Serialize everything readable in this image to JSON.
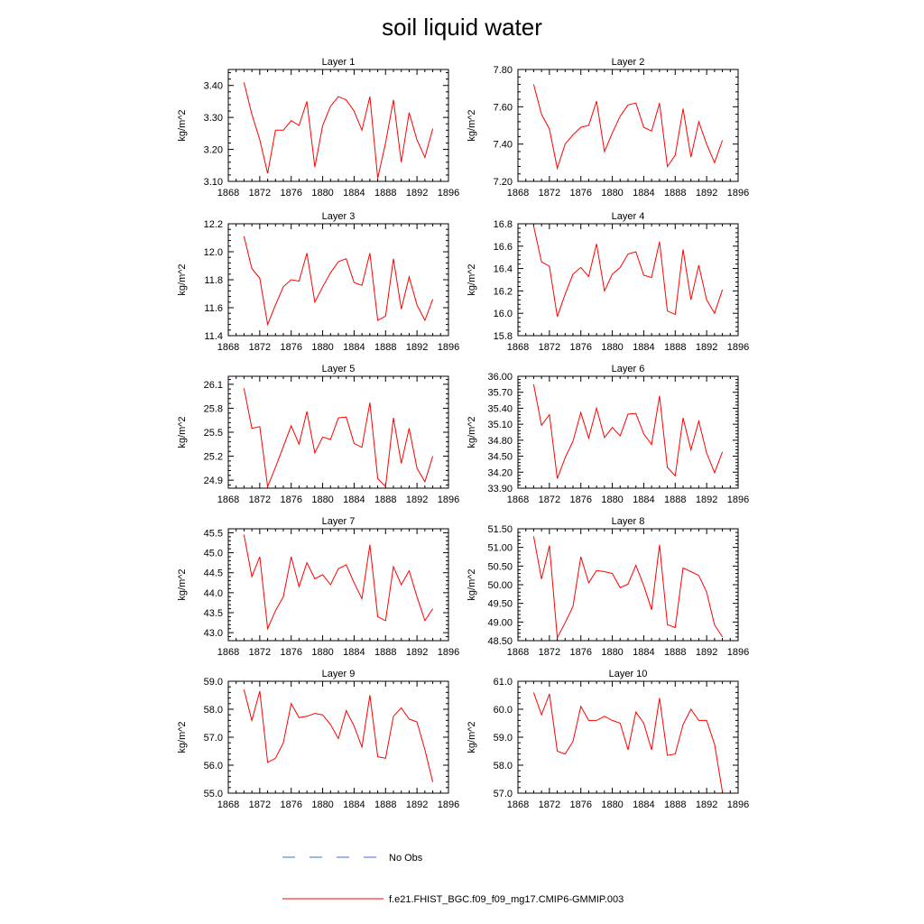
{
  "figure": {
    "title": "soil liquid water",
    "legend": [
      {
        "label": "No Obs",
        "style": "dashed",
        "color": "#4169e1"
      },
      {
        "label": "f.e21.FHIST_BGC.f09_f09_mg17.CMIP6-GMMIP.003",
        "style": "solid",
        "color": "#ff0000"
      }
    ]
  },
  "chart_data": [
    {
      "type": "line",
      "title": "Layer 1",
      "ylabel": "kg/m^2",
      "xlim": [
        1868,
        1896
      ],
      "xticks": [
        1868,
        1872,
        1876,
        1880,
        1884,
        1888,
        1892,
        1896
      ],
      "ylim": [
        3.1,
        3.45
      ],
      "yticks": [
        "3.10",
        "3.20",
        "3.30",
        "3.40"
      ],
      "x": [
        1870,
        1871,
        1872,
        1873,
        1874,
        1875,
        1876,
        1877,
        1878,
        1879,
        1880,
        1881,
        1882,
        1883,
        1884,
        1885,
        1886,
        1887,
        1888,
        1889,
        1890,
        1891,
        1892,
        1893,
        1894
      ],
      "series": [
        {
          "name": "f.e21.FHIST_BGC.f09_f09_mg17.CMIP6-GMMIP.003",
          "color": "#ff0000",
          "values": [
            3.41,
            3.31,
            3.23,
            3.125,
            3.26,
            3.26,
            3.29,
            3.275,
            3.35,
            3.145,
            3.275,
            3.335,
            3.365,
            3.355,
            3.32,
            3.26,
            3.365,
            3.11,
            3.22,
            3.355,
            3.16,
            3.315,
            3.23,
            3.175,
            3.265
          ]
        }
      ]
    },
    {
      "type": "line",
      "title": "Layer 2",
      "ylabel": "kg/m^2",
      "xlim": [
        1868,
        1896
      ],
      "xticks": [
        1868,
        1872,
        1876,
        1880,
        1884,
        1888,
        1892,
        1896
      ],
      "ylim": [
        7.2,
        7.8
      ],
      "yticks": [
        "7.20",
        "7.40",
        "7.60",
        "7.80"
      ],
      "x": [
        1870,
        1871,
        1872,
        1873,
        1874,
        1875,
        1876,
        1877,
        1878,
        1879,
        1880,
        1881,
        1882,
        1883,
        1884,
        1885,
        1886,
        1887,
        1888,
        1889,
        1890,
        1891,
        1892,
        1893,
        1894
      ],
      "series": [
        {
          "name": "f.e21.FHIST_BGC.f09_f09_mg17.CMIP6-GMMIP.003",
          "color": "#ff0000",
          "values": [
            7.72,
            7.56,
            7.48,
            7.27,
            7.4,
            7.45,
            7.49,
            7.5,
            7.63,
            7.36,
            7.46,
            7.55,
            7.61,
            7.62,
            7.49,
            7.47,
            7.62,
            7.28,
            7.34,
            7.59,
            7.33,
            7.52,
            7.4,
            7.3,
            7.42
          ]
        }
      ]
    },
    {
      "type": "line",
      "title": "Layer 3",
      "ylabel": "kg/m^2",
      "xlim": [
        1868,
        1896
      ],
      "xticks": [
        1868,
        1872,
        1876,
        1880,
        1884,
        1888,
        1892,
        1896
      ],
      "ylim": [
        11.4,
        12.2
      ],
      "yticks": [
        "11.4",
        "11.6",
        "11.8",
        "12.0",
        "12.2"
      ],
      "x": [
        1870,
        1871,
        1872,
        1873,
        1874,
        1875,
        1876,
        1877,
        1878,
        1879,
        1880,
        1881,
        1882,
        1883,
        1884,
        1885,
        1886,
        1887,
        1888,
        1889,
        1890,
        1891,
        1892,
        1893,
        1894
      ],
      "series": [
        {
          "name": "f.e21.FHIST_BGC.f09_f09_mg17.CMIP6-GMMIP.003",
          "color": "#ff0000",
          "values": [
            12.11,
            11.88,
            11.81,
            11.48,
            11.62,
            11.75,
            11.8,
            11.79,
            11.99,
            11.64,
            11.75,
            11.85,
            11.93,
            11.95,
            11.78,
            11.76,
            11.99,
            11.51,
            11.54,
            11.95,
            11.59,
            11.82,
            11.62,
            11.51,
            11.66
          ]
        }
      ]
    },
    {
      "type": "line",
      "title": "Layer 4",
      "ylabel": "kg/m^2",
      "xlim": [
        1868,
        1896
      ],
      "xticks": [
        1868,
        1872,
        1876,
        1880,
        1884,
        1888,
        1892,
        1896
      ],
      "ylim": [
        15.8,
        16.8
      ],
      "yticks": [
        "15.8",
        "16.0",
        "16.2",
        "16.4",
        "16.6",
        "16.8"
      ],
      "x": [
        1870,
        1871,
        1872,
        1873,
        1874,
        1875,
        1876,
        1877,
        1878,
        1879,
        1880,
        1881,
        1882,
        1883,
        1884,
        1885,
        1886,
        1887,
        1888,
        1889,
        1890,
        1891,
        1892,
        1893,
        1894
      ],
      "series": [
        {
          "name": "f.e21.FHIST_BGC.f09_f09_mg17.CMIP6-GMMIP.003",
          "color": "#ff0000",
          "values": [
            16.78,
            16.46,
            16.42,
            15.97,
            16.17,
            16.35,
            16.41,
            16.33,
            16.62,
            16.2,
            16.35,
            16.41,
            16.53,
            16.55,
            16.34,
            16.32,
            16.64,
            16.02,
            15.99,
            16.57,
            16.12,
            16.43,
            16.12,
            16.0,
            16.21
          ]
        }
      ]
    },
    {
      "type": "line",
      "title": "Layer 5",
      "ylabel": "kg/m^2",
      "xlim": [
        1868,
        1896
      ],
      "xticks": [
        1868,
        1872,
        1876,
        1880,
        1884,
        1888,
        1892,
        1896
      ],
      "ylim": [
        24.8,
        26.2
      ],
      "yticks": [
        "24.9",
        "25.2",
        "25.5",
        "25.8",
        "26.1"
      ],
      "x": [
        1870,
        1871,
        1872,
        1873,
        1874,
        1875,
        1876,
        1877,
        1878,
        1879,
        1880,
        1881,
        1882,
        1883,
        1884,
        1885,
        1886,
        1887,
        1888,
        1889,
        1890,
        1891,
        1892,
        1893,
        1894
      ],
      "series": [
        {
          "name": "f.e21.FHIST_BGC.f09_f09_mg17.CMIP6-GMMIP.003",
          "color": "#ff0000",
          "values": [
            26.05,
            25.55,
            25.57,
            24.82,
            25.06,
            25.32,
            25.58,
            25.35,
            25.76,
            25.24,
            25.44,
            25.41,
            25.68,
            25.69,
            25.36,
            25.31,
            25.87,
            24.92,
            24.82,
            25.68,
            25.11,
            25.55,
            25.05,
            24.88,
            25.2
          ]
        }
      ]
    },
    {
      "type": "line",
      "title": "Layer 6",
      "ylabel": "kg/m^2",
      "xlim": [
        1868,
        1896
      ],
      "xticks": [
        1868,
        1872,
        1876,
        1880,
        1884,
        1888,
        1892,
        1896
      ],
      "ylim": [
        33.9,
        36.0
      ],
      "yticks": [
        "33.90",
        "34.20",
        "34.50",
        "34.80",
        "35.10",
        "35.40",
        "35.70",
        "36.00"
      ],
      "x": [
        1870,
        1871,
        1872,
        1873,
        1874,
        1875,
        1876,
        1877,
        1878,
        1879,
        1880,
        1881,
        1882,
        1883,
        1884,
        1885,
        1886,
        1887,
        1888,
        1889,
        1890,
        1891,
        1892,
        1893,
        1894
      ],
      "series": [
        {
          "name": "f.e21.FHIST_BGC.f09_f09_mg17.CMIP6-GMMIP.003",
          "color": "#ff0000",
          "values": [
            35.85,
            35.08,
            35.28,
            34.08,
            34.47,
            34.78,
            35.32,
            34.84,
            35.4,
            34.85,
            35.04,
            34.88,
            35.29,
            35.3,
            34.92,
            34.72,
            35.63,
            34.29,
            34.13,
            35.22,
            34.62,
            35.16,
            34.56,
            34.19,
            34.58
          ]
        }
      ]
    },
    {
      "type": "line",
      "title": "Layer 7",
      "ylabel": "kg/m^2",
      "xlim": [
        1868,
        1896
      ],
      "xticks": [
        1868,
        1872,
        1876,
        1880,
        1884,
        1888,
        1892,
        1896
      ],
      "ylim": [
        42.8,
        45.6
      ],
      "yticks": [
        "43.0",
        "43.5",
        "44.0",
        "44.5",
        "45.0",
        "45.5"
      ],
      "x": [
        1870,
        1871,
        1872,
        1873,
        1874,
        1875,
        1876,
        1877,
        1878,
        1879,
        1880,
        1881,
        1882,
        1883,
        1884,
        1885,
        1886,
        1887,
        1888,
        1889,
        1890,
        1891,
        1892,
        1893,
        1894
      ],
      "series": [
        {
          "name": "f.e21.FHIST_BGC.f09_f09_mg17.CMIP6-GMMIP.003",
          "color": "#ff0000",
          "values": [
            45.45,
            44.4,
            44.9,
            43.1,
            43.55,
            43.9,
            44.9,
            44.15,
            44.75,
            44.35,
            44.45,
            44.2,
            44.6,
            44.7,
            44.25,
            43.85,
            45.2,
            43.4,
            43.3,
            44.65,
            44.2,
            44.55,
            43.9,
            43.3,
            43.6
          ]
        }
      ]
    },
    {
      "type": "line",
      "title": "Layer 8",
      "ylabel": "kg/m^2",
      "xlim": [
        1868,
        1896
      ],
      "xticks": [
        1868,
        1872,
        1876,
        1880,
        1884,
        1888,
        1892,
        1896
      ],
      "ylim": [
        48.5,
        51.5
      ],
      "yticks": [
        "48.50",
        "49.00",
        "49.50",
        "50.00",
        "50.50",
        "51.00",
        "51.50"
      ],
      "x": [
        1870,
        1871,
        1872,
        1873,
        1874,
        1875,
        1876,
        1877,
        1878,
        1879,
        1880,
        1881,
        1882,
        1883,
        1884,
        1885,
        1886,
        1887,
        1888,
        1889,
        1890,
        1891,
        1892,
        1893,
        1894
      ],
      "series": [
        {
          "name": "f.e21.FHIST_BGC.f09_f09_mg17.CMIP6-GMMIP.003",
          "color": "#ff0000",
          "values": [
            51.3,
            50.15,
            51.05,
            48.58,
            48.98,
            49.42,
            50.75,
            50.05,
            50.38,
            50.35,
            50.3,
            49.92,
            50.02,
            50.52,
            49.98,
            49.33,
            51.07,
            48.93,
            48.85,
            50.45,
            50.35,
            50.25,
            49.8,
            48.92,
            48.6
          ]
        }
      ]
    },
    {
      "type": "line",
      "title": "Layer 9",
      "ylabel": "kg/m^2",
      "xlim": [
        1868,
        1896
      ],
      "xticks": [
        1868,
        1872,
        1876,
        1880,
        1884,
        1888,
        1892,
        1896
      ],
      "ylim": [
        55.0,
        59.0
      ],
      "yticks": [
        "55.0",
        "56.0",
        "57.0",
        "58.0",
        "59.0"
      ],
      "x": [
        1870,
        1871,
        1872,
        1873,
        1874,
        1875,
        1876,
        1877,
        1878,
        1879,
        1880,
        1881,
        1882,
        1883,
        1884,
        1885,
        1886,
        1887,
        1888,
        1889,
        1890,
        1891,
        1892,
        1893,
        1894
      ],
      "series": [
        {
          "name": "f.e21.FHIST_BGC.f09_f09_mg17.CMIP6-GMMIP.003",
          "color": "#ff0000",
          "values": [
            58.7,
            57.6,
            58.65,
            56.1,
            56.25,
            56.8,
            58.2,
            57.7,
            57.75,
            57.85,
            57.8,
            57.45,
            56.95,
            57.95,
            57.4,
            56.65,
            58.5,
            56.3,
            56.25,
            57.75,
            58.05,
            57.65,
            57.55,
            56.55,
            55.4
          ]
        }
      ]
    },
    {
      "type": "line",
      "title": "Layer 10",
      "ylabel": "kg/m^2",
      "xlim": [
        1868,
        1896
      ],
      "xticks": [
        1868,
        1872,
        1876,
        1880,
        1884,
        1888,
        1892,
        1896
      ],
      "ylim": [
        57.0,
        61.0
      ],
      "yticks": [
        "57.0",
        "58.0",
        "59.0",
        "60.0",
        "61.0"
      ],
      "x": [
        1870,
        1871,
        1872,
        1873,
        1874,
        1875,
        1876,
        1877,
        1878,
        1879,
        1880,
        1881,
        1882,
        1883,
        1884,
        1885,
        1886,
        1887,
        1888,
        1889,
        1890,
        1891,
        1892,
        1893,
        1894
      ],
      "series": [
        {
          "name": "f.e21.FHIST_BGC.f09_f09_mg17.CMIP6-GMMIP.003",
          "color": "#ff0000",
          "values": [
            60.6,
            59.8,
            60.55,
            58.5,
            58.4,
            58.85,
            60.1,
            59.6,
            59.6,
            59.75,
            59.6,
            59.5,
            58.55,
            59.9,
            59.5,
            58.55,
            60.4,
            58.35,
            58.4,
            59.45,
            60.0,
            59.6,
            59.6,
            58.75,
            57.05
          ]
        }
      ]
    }
  ]
}
